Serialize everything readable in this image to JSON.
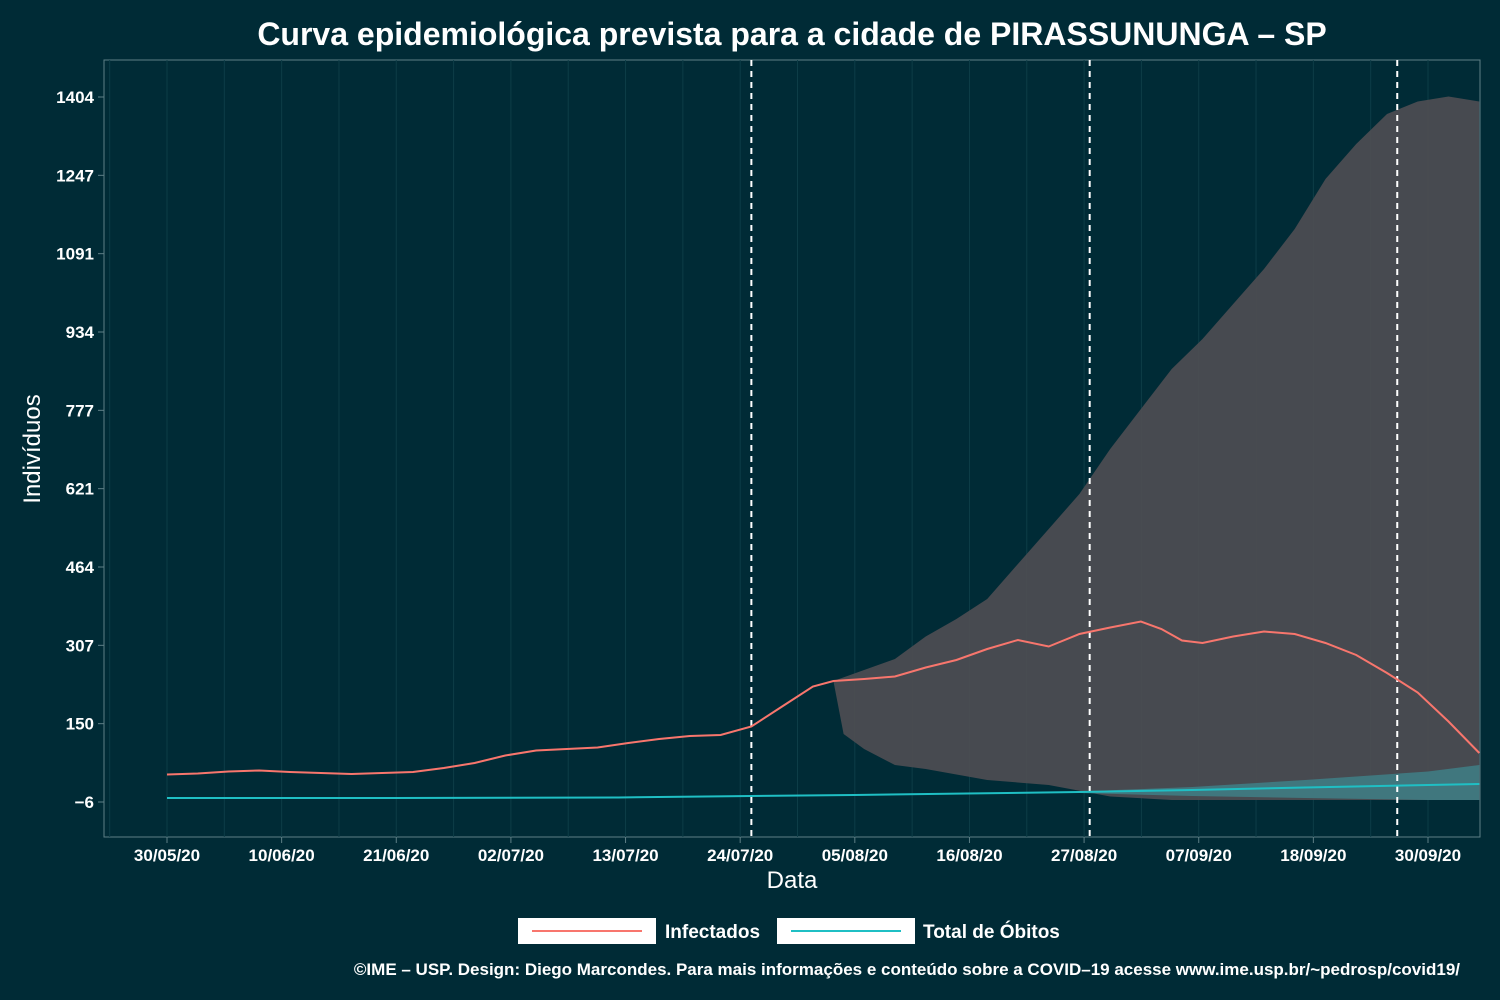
{
  "chart_data": {
    "type": "line",
    "title": "Curva epidemiológica prevista para a cidade de PIRASSUNUNGA – SP",
    "xlabel": "Data",
    "ylabel": "Indivíduos",
    "x_ticks": [
      "30/05/20",
      "10/06/20",
      "21/06/20",
      "02/07/20",
      "13/07/20",
      "24/07/20",
      "05/08/20",
      "16/08/20",
      "27/08/20",
      "07/09/20",
      "18/09/20",
      "30/09/20"
    ],
    "y_ticks": [
      "-6",
      "150",
      "307",
      "464",
      "621",
      "777",
      "934",
      "1091",
      "1247",
      "1404"
    ],
    "ylim": [
      -75,
      1475
    ],
    "xlim": [
      "2020-05-30",
      "2020-09-30"
    ],
    "grid": true,
    "vlines": [
      "2020-07-26",
      "2020-08-28",
      "2020-09-27"
    ],
    "series": [
      {
        "name": "Infectados",
        "color": "#f8766d",
        "points": [
          [
            "2020-05-30",
            49
          ],
          [
            "2020-06-02",
            51
          ],
          [
            "2020-06-05",
            55
          ],
          [
            "2020-06-08",
            57
          ],
          [
            "2020-06-11",
            54
          ],
          [
            "2020-06-14",
            52
          ],
          [
            "2020-06-17",
            50
          ],
          [
            "2020-06-20",
            52
          ],
          [
            "2020-06-23",
            54
          ],
          [
            "2020-06-26",
            62
          ],
          [
            "2020-06-29",
            72
          ],
          [
            "2020-07-02",
            87
          ],
          [
            "2020-07-05",
            97
          ],
          [
            "2020-07-08",
            100
          ],
          [
            "2020-07-11",
            103
          ],
          [
            "2020-07-14",
            112
          ],
          [
            "2020-07-17",
            120
          ],
          [
            "2020-07-20",
            126
          ],
          [
            "2020-07-23",
            128
          ],
          [
            "2020-07-26",
            145
          ],
          [
            "2020-07-29",
            185
          ],
          [
            "2020-08-01",
            225
          ],
          [
            "2020-08-03",
            236
          ],
          [
            "2020-08-06",
            240
          ],
          [
            "2020-08-09",
            245
          ],
          [
            "2020-08-12",
            263
          ],
          [
            "2020-08-15",
            278
          ],
          [
            "2020-08-18",
            300
          ],
          [
            "2020-08-21",
            318
          ],
          [
            "2020-08-24",
            305
          ],
          [
            "2020-08-27",
            330
          ],
          [
            "2020-08-30",
            343
          ],
          [
            "2020-09-02",
            355
          ],
          [
            "2020-09-04",
            340
          ],
          [
            "2020-09-06",
            317
          ],
          [
            "2020-09-08",
            312
          ],
          [
            "2020-09-11",
            325
          ],
          [
            "2020-09-14",
            335
          ],
          [
            "2020-09-17",
            330
          ],
          [
            "2020-09-20",
            312
          ],
          [
            "2020-09-23",
            288
          ],
          [
            "2020-09-26",
            252
          ],
          [
            "2020-09-29",
            213
          ],
          [
            "2020-10-02",
            155
          ],
          [
            "2020-10-05",
            92
          ]
        ]
      },
      {
        "name": "Total de Óbitos",
        "color": "#1fbfc4",
        "points": [
          [
            "2020-05-30",
            2
          ],
          [
            "2020-06-21",
            2
          ],
          [
            "2020-07-13",
            3
          ],
          [
            "2020-07-26",
            6
          ],
          [
            "2020-08-05",
            8
          ],
          [
            "2020-08-16",
            11
          ],
          [
            "2020-08-27",
            14
          ],
          [
            "2020-09-07",
            18
          ],
          [
            "2020-09-18",
            23
          ],
          [
            "2020-09-30",
            28
          ],
          [
            "2020-10-05",
            30
          ]
        ]
      }
    ],
    "bands": [
      {
        "series": "Infectados",
        "color": "#4d4d52",
        "upper": [
          [
            "2020-08-03",
            236
          ],
          [
            "2020-08-06",
            258
          ],
          [
            "2020-08-09",
            280
          ],
          [
            "2020-08-12",
            325
          ],
          [
            "2020-08-15",
            360
          ],
          [
            "2020-08-18",
            400
          ],
          [
            "2020-08-21",
            470
          ],
          [
            "2020-08-24",
            540
          ],
          [
            "2020-08-27",
            610
          ],
          [
            "2020-08-30",
            700
          ],
          [
            "2020-09-02",
            780
          ],
          [
            "2020-09-05",
            860
          ],
          [
            "2020-09-08",
            920
          ],
          [
            "2020-09-11",
            990
          ],
          [
            "2020-09-14",
            1060
          ],
          [
            "2020-09-17",
            1140
          ],
          [
            "2020-09-20",
            1240
          ],
          [
            "2020-09-23",
            1310
          ],
          [
            "2020-09-26",
            1370
          ],
          [
            "2020-09-29",
            1395
          ],
          [
            "2020-10-02",
            1405
          ],
          [
            "2020-10-05",
            1395
          ]
        ],
        "lower": [
          [
            "2020-10-05",
            -2
          ],
          [
            "2020-09-29",
            -2
          ],
          [
            "2020-09-23",
            -2
          ],
          [
            "2020-09-17",
            -2
          ],
          [
            "2020-09-11",
            -2
          ],
          [
            "2020-09-05",
            -2
          ],
          [
            "2020-08-30",
            5
          ],
          [
            "2020-08-24",
            28
          ],
          [
            "2020-08-18",
            38
          ],
          [
            "2020-08-12",
            60
          ],
          [
            "2020-08-09",
            68
          ],
          [
            "2020-08-06",
            100
          ],
          [
            "2020-08-04",
            130
          ],
          [
            "2020-08-03",
            236
          ]
        ]
      },
      {
        "series": "Total de Óbitos",
        "color": "#3f7f86",
        "upper": [
          [
            "2020-08-27",
            15
          ],
          [
            "2020-09-07",
            24
          ],
          [
            "2020-09-18",
            38
          ],
          [
            "2020-09-30",
            55
          ],
          [
            "2020-10-05",
            68
          ]
        ],
        "lower": [
          [
            "2020-10-05",
            -2
          ],
          [
            "2020-09-30",
            -2
          ],
          [
            "2020-09-18",
            2
          ],
          [
            "2020-09-07",
            6
          ],
          [
            "2020-08-27",
            12
          ]
        ]
      }
    ],
    "legend": {
      "position": "bottom",
      "entries": [
        "Infectados",
        "Total de Óbitos"
      ]
    }
  },
  "caption": "©IME – USP. Design: Diego Marcondes. Para mais informações e conteúdo sobre a COVID–19 acesse www.ime.usp.br/~pedrosp/covid19/"
}
